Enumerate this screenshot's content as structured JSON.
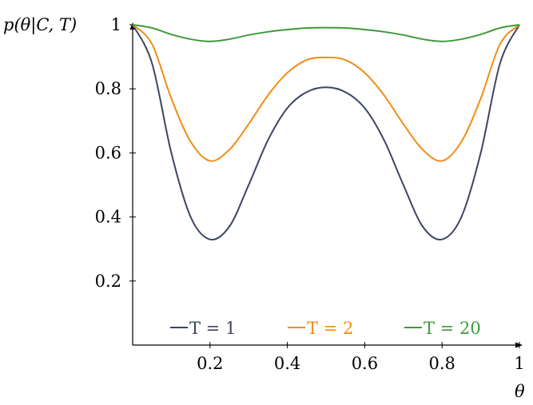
{
  "chart_data": {
    "type": "line",
    "title": "",
    "xlabel": "θ",
    "ylabel": "p(θ|C, T)",
    "xlim": [
      0,
      1
    ],
    "ylim": [
      0,
      1
    ],
    "x_ticks": [
      {
        "value": 0.2,
        "label": "0.2"
      },
      {
        "value": 0.4,
        "label": "0.4"
      },
      {
        "value": 0.6,
        "label": "0.6"
      },
      {
        "value": 0.8,
        "label": "0.8"
      },
      {
        "value": 1.0,
        "label": "1"
      }
    ],
    "y_ticks": [
      {
        "value": 0.2,
        "label": "0.2"
      },
      {
        "value": 0.4,
        "label": "0.4"
      },
      {
        "value": 0.6,
        "label": "0.6"
      },
      {
        "value": 0.8,
        "label": "0.8"
      },
      {
        "value": 1.0,
        "label": "1"
      }
    ],
    "legend_position": "bottom",
    "x": [
      0,
      0.05,
      0.1,
      0.15,
      0.2,
      0.25,
      0.3,
      0.35,
      0.4,
      0.45,
      0.5,
      0.55,
      0.6,
      0.65,
      0.7,
      0.75,
      0.8,
      0.85,
      0.9,
      0.95,
      1.0
    ],
    "series": [
      {
        "name": "T = 1",
        "color": "#3b4563",
        "values": [
          1.0,
          0.88,
          0.6,
          0.4,
          0.33,
          0.37,
          0.5,
          0.64,
          0.74,
          0.79,
          0.805,
          0.79,
          0.74,
          0.64,
          0.5,
          0.37,
          0.33,
          0.4,
          0.6,
          0.88,
          1.0
        ]
      },
      {
        "name": "T = 2",
        "color": "#f28c13",
        "values": [
          1.0,
          0.94,
          0.77,
          0.635,
          0.575,
          0.61,
          0.69,
          0.78,
          0.85,
          0.89,
          0.898,
          0.89,
          0.85,
          0.78,
          0.69,
          0.61,
          0.575,
          0.635,
          0.77,
          0.94,
          1.0
        ]
      },
      {
        "name": "T = 20",
        "color": "#3e9a3a",
        "values": [
          1.0,
          0.99,
          0.97,
          0.955,
          0.948,
          0.955,
          0.968,
          0.978,
          0.985,
          0.99,
          0.991,
          0.99,
          0.985,
          0.978,
          0.968,
          0.955,
          0.948,
          0.955,
          0.97,
          0.99,
          1.0
        ]
      }
    ]
  }
}
